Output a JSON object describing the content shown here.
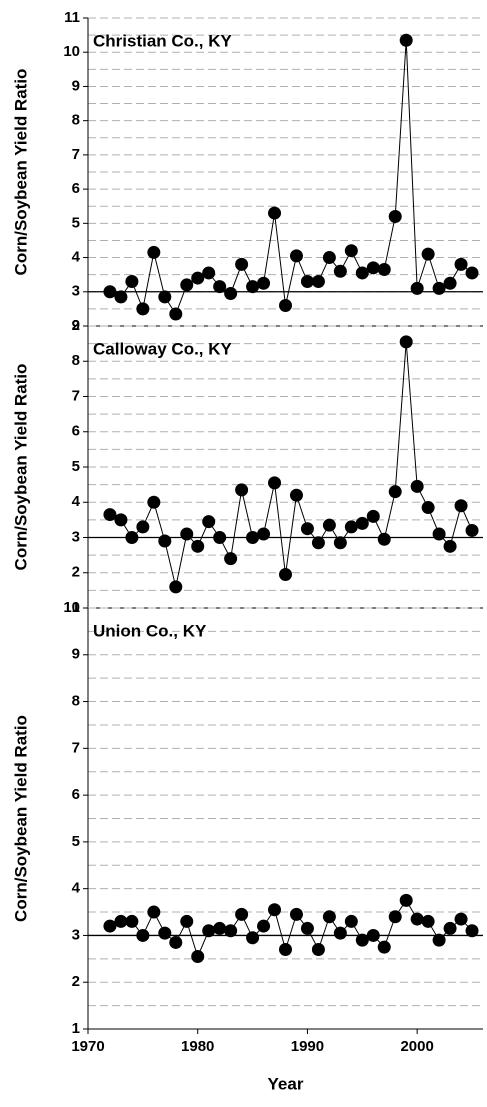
{
  "chart_data": [
    {
      "type": "line",
      "annotation": "Christian Co., KY",
      "ylabel": "Corn/Soybean Yield Ratio",
      "color": "#000000",
      "x": [
        1972,
        1973,
        1974,
        1975,
        1976,
        1977,
        1978,
        1979,
        1980,
        1981,
        1982,
        1983,
        1984,
        1985,
        1986,
        1987,
        1988,
        1989,
        1990,
        1991,
        1992,
        1993,
        1994,
        1995,
        1996,
        1997,
        1998,
        1999,
        2000,
        2001,
        2002,
        2003,
        2004,
        2005
      ],
      "values": [
        3.0,
        2.85,
        3.3,
        2.5,
        4.15,
        2.85,
        2.35,
        3.2,
        3.4,
        3.55,
        3.15,
        2.95,
        3.8,
        3.15,
        3.25,
        5.3,
        2.6,
        4.05,
        3.3,
        3.3,
        4.0,
        3.6,
        4.2,
        3.55,
        3.7,
        3.65,
        5.2,
        10.35,
        3.1,
        4.1,
        3.1,
        3.25,
        3.8,
        3.55
      ],
      "xlim": [
        1970,
        2006
      ],
      "ylim": [
        2,
        11
      ],
      "yticks": [
        2,
        3,
        4,
        5,
        6,
        7,
        8,
        9,
        10,
        11
      ],
      "minor_yticks": [
        2.5,
        3.5,
        4.5,
        5.5,
        6.5,
        7.5,
        8.5,
        9.5,
        10.5
      ],
      "reference_line": 3,
      "grid": true
    },
    {
      "type": "line",
      "annotation": "Calloway Co., KY",
      "ylabel": "Corn/Soybean Yield Ratio",
      "color": "#000000",
      "x": [
        1972,
        1973,
        1974,
        1975,
        1976,
        1977,
        1978,
        1979,
        1980,
        1981,
        1982,
        1983,
        1984,
        1985,
        1986,
        1987,
        1988,
        1989,
        1990,
        1991,
        1992,
        1993,
        1994,
        1995,
        1996,
        1997,
        1998,
        1999,
        2000,
        2001,
        2002,
        2003,
        2004,
        2005
      ],
      "values": [
        3.65,
        3.5,
        3.0,
        3.3,
        4.0,
        2.9,
        1.6,
        3.1,
        2.75,
        3.45,
        3.0,
        2.4,
        4.35,
        3.0,
        3.1,
        4.55,
        1.95,
        4.2,
        3.25,
        2.85,
        3.35,
        2.85,
        3.3,
        3.4,
        3.6,
        2.95,
        4.3,
        8.55,
        4.45,
        3.85,
        3.1,
        2.75,
        3.9,
        3.2
      ],
      "xlim": [
        1970,
        2006
      ],
      "ylim": [
        1,
        9
      ],
      "yticks": [
        1,
        2,
        3,
        4,
        5,
        6,
        7,
        8,
        9
      ],
      "minor_yticks": [
        1.5,
        2.5,
        3.5,
        4.5,
        5.5,
        6.5,
        7.5,
        8.5
      ],
      "reference_line": 3,
      "grid": true
    },
    {
      "type": "line",
      "annotation": "Union Co., KY",
      "ylabel": "Corn/Soybean Yield Ratio",
      "xlabel": "Year",
      "color": "#000000",
      "x": [
        1972,
        1973,
        1974,
        1975,
        1976,
        1977,
        1978,
        1979,
        1980,
        1981,
        1982,
        1983,
        1984,
        1985,
        1986,
        1987,
        1988,
        1989,
        1990,
        1991,
        1992,
        1993,
        1994,
        1995,
        1996,
        1997,
        1998,
        1999,
        2000,
        2001,
        2002,
        2003,
        2004,
        2005
      ],
      "values": [
        3.2,
        3.3,
        3.3,
        3.0,
        3.5,
        3.05,
        2.85,
        3.3,
        2.55,
        3.1,
        3.15,
        3.1,
        3.45,
        2.95,
        3.2,
        3.55,
        2.7,
        3.45,
        3.15,
        2.7,
        3.4,
        3.05,
        3.3,
        2.9,
        3.0,
        2.75,
        3.4,
        3.75,
        3.35,
        3.3,
        2.9,
        3.15,
        3.35,
        3.1
      ],
      "xlim": [
        1970,
        2006
      ],
      "ylim": [
        1,
        10
      ],
      "yticks": [
        1,
        2,
        3,
        4,
        5,
        6,
        7,
        8,
        9,
        10
      ],
      "minor_yticks": [
        1.5,
        2.5,
        3.5,
        4.5,
        5.5,
        6.5,
        7.5,
        8.5,
        9.5
      ],
      "xticks": [
        1970,
        1980,
        1990,
        2000
      ],
      "reference_line": 3,
      "grid": true
    }
  ]
}
